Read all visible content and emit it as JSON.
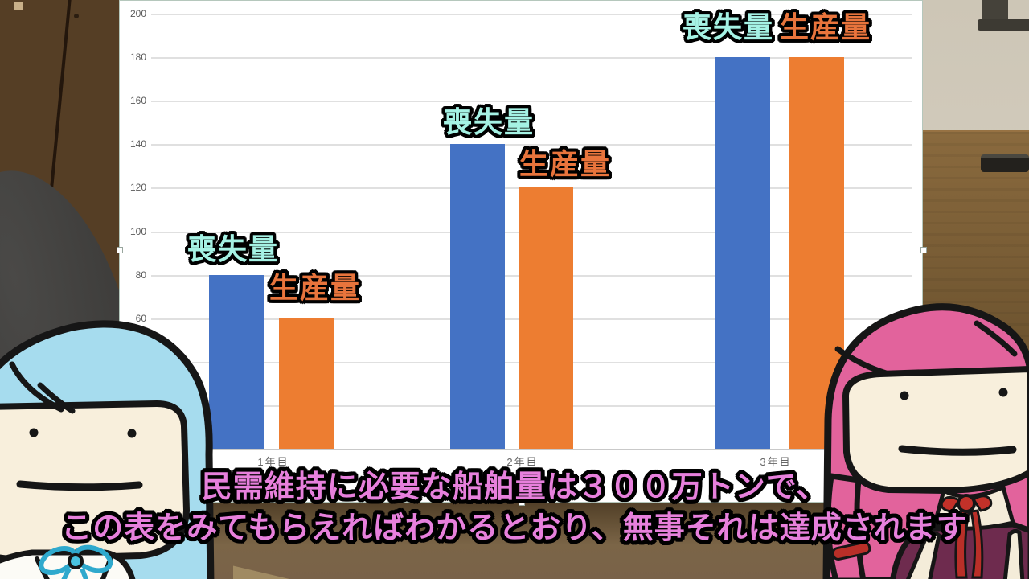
{
  "scene": {
    "subtitles": {
      "line1": "民需維持に必要な船舶量は３００万トンで、",
      "line2": "この表をみてもらえればわかるとおり、無事それは達成されます",
      "text_color": "#e780dc"
    },
    "characters": [
      {
        "name": "blue-haired character",
        "hair_color": "#a6dcee"
      },
      {
        "name": "pink-haired character",
        "hair_color": "#e2639c"
      }
    ]
  },
  "chart_data": {
    "type": "bar",
    "title": "",
    "categories": [
      "1年目",
      "2年目",
      "3年目"
    ],
    "series": [
      {
        "name": "喪失量",
        "values": [
          80,
          140,
          180
        ],
        "bar_color": "#4472c4",
        "label_color": "#a5f2e4"
      },
      {
        "name": "生産量",
        "values": [
          60,
          120,
          180
        ],
        "bar_color": "#ed7d31",
        "label_color": "#e8743c"
      }
    ],
    "ylim": [
      0,
      200
    ],
    "ytick_step": 20,
    "visible_yticks": [
      200,
      180,
      160,
      140,
      120,
      100,
      80,
      60
    ],
    "grid": true,
    "legend_position": "labels-above-bars",
    "axis_text_color": "#595959"
  }
}
